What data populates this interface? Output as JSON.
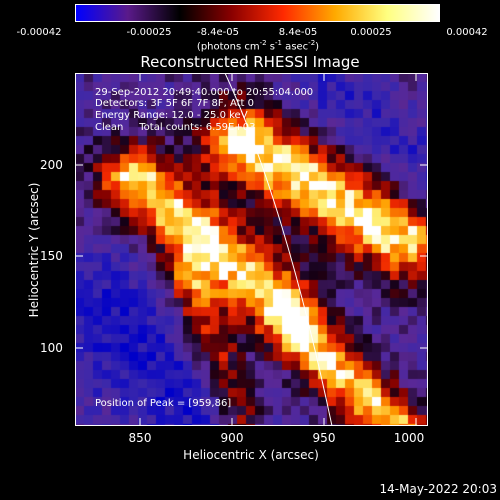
{
  "colorbar": {
    "ticks": [
      "-0.00042",
      "-0.00025",
      "-8.4e-05",
      "8.4e-05",
      "0.00025",
      "0.00042"
    ],
    "units_prefix": "(photons cm",
    "units_exp1": "-2",
    "units_mid": " s",
    "units_exp2": "-1",
    "units_mid2": " asec",
    "units_exp3": "-2",
    "units_suffix": ")",
    "colors": [
      "#0000ff",
      "#5a1a8a",
      "#000000",
      "#8a0000",
      "#ff2a00",
      "#ffaa00",
      "#ffff80",
      "#ffffff"
    ]
  },
  "title": "Reconstructed RHESSI Image",
  "info": {
    "line1": "29-Sep-2012 20:49:40.000 to 20:55:04.000",
    "line2": "Detectors: 3F 5F 6F 7F 8F, Att 0",
    "line3": "Energy Range: 12.0 - 25.0 keV",
    "line4": "Clean     Total counts: 6.59E+03"
  },
  "peak": "Position of Peak = [959,86]",
  "axes": {
    "xlabel": "Heliocentric X (arcsec)",
    "ylabel": "Heliocentric Y (arcsec)",
    "xticks": [
      "850",
      "900",
      "950",
      "1000"
    ],
    "yticks": [
      "100",
      "150",
      "200"
    ],
    "xrange": [
      815,
      1005
    ],
    "yrange": [
      50,
      240
    ]
  },
  "footer": "14-May-2022 20:03"
}
